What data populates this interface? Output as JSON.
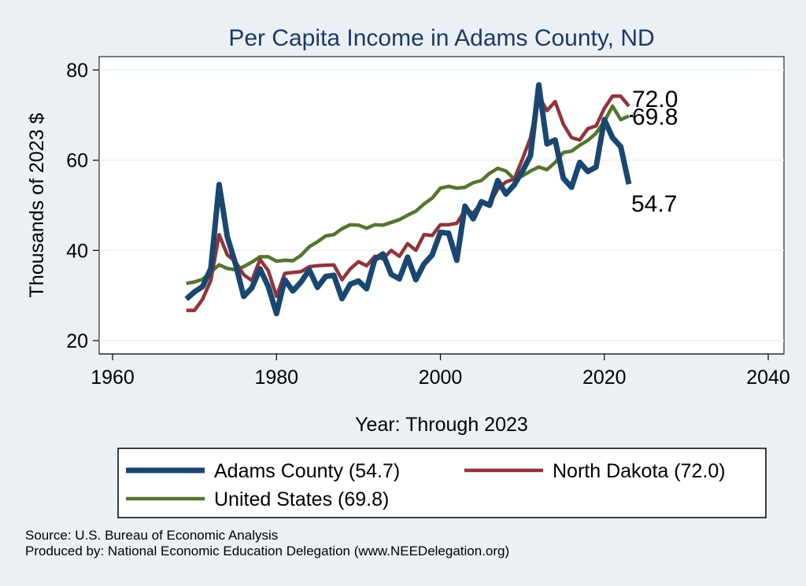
{
  "chart_data": {
    "type": "line",
    "title": "Per Capita Income in Adams County, ND",
    "xlabel": "Year: Through 2023",
    "ylabel": "Thousands of 2023 $",
    "xlim": [
      1960,
      2040
    ],
    "ylim": [
      20,
      80
    ],
    "xticks": [
      1960,
      1980,
      2000,
      2020,
      2040
    ],
    "yticks": [
      20,
      40,
      60,
      80
    ],
    "grid": true,
    "legend_position": "bottom",
    "x": [
      1969,
      1970,
      1971,
      1972,
      1973,
      1974,
      1975,
      1976,
      1977,
      1978,
      1979,
      1980,
      1981,
      1982,
      1983,
      1984,
      1985,
      1986,
      1987,
      1988,
      1989,
      1990,
      1991,
      1992,
      1993,
      1994,
      1995,
      1996,
      1997,
      1998,
      1999,
      2000,
      2001,
      2002,
      2003,
      2004,
      2005,
      2006,
      2007,
      2008,
      2009,
      2010,
      2011,
      2012,
      2013,
      2014,
      2015,
      2016,
      2017,
      2018,
      2019,
      2020,
      2021,
      2022,
      2023
    ],
    "series": [
      {
        "name": "Adams County",
        "legend_label": "Adams County (54.7)",
        "end_label": "54.7",
        "color": "#1a476f",
        "values": [
          29.2,
          30.8,
          32.0,
          36.0,
          54.6,
          43.0,
          37.0,
          29.8,
          31.7,
          35.9,
          32.0,
          26.0,
          33.5,
          31.0,
          33.0,
          35.7,
          31.8,
          34.2,
          34.5,
          29.3,
          32.5,
          33.2,
          31.5,
          38.0,
          39.2,
          34.7,
          33.7,
          38.5,
          33.5,
          37.0,
          39.0,
          44.0,
          43.8,
          37.8,
          49.8,
          47.0,
          50.8,
          50.0,
          55.5,
          52.5,
          54.5,
          57.5,
          61.0,
          76.7,
          63.6,
          64.5,
          56.0,
          54.0,
          59.5,
          57.5,
          58.5,
          69.0,
          65.0,
          63.0,
          54.7
        ]
      },
      {
        "name": "North Dakota",
        "legend_label": "North Dakota (72.0)",
        "end_label": "72.0",
        "color": "#90353b",
        "values": [
          26.7,
          26.7,
          29.2,
          33.4,
          43.5,
          39.0,
          37.5,
          34.6,
          33.3,
          38.0,
          35.5,
          29.8,
          34.9,
          35.1,
          35.3,
          36.4,
          36.6,
          36.7,
          36.8,
          33.5,
          35.9,
          37.5,
          36.6,
          38.7,
          38.1,
          40.0,
          38.7,
          41.5,
          40.0,
          43.5,
          43.3,
          45.7,
          45.7,
          46.0,
          48.9,
          48.3,
          50.5,
          50.4,
          53.6,
          55.2,
          55.8,
          60.2,
          65.0,
          74.2,
          71.0,
          73.0,
          68.0,
          65.0,
          64.5,
          67.0,
          67.6,
          71.5,
          74.2,
          74.2,
          72.0
        ]
      },
      {
        "name": "United States",
        "legend_label": "United States (69.8)",
        "end_label": "69.8",
        "color": "#55752f",
        "values": [
          32.7,
          33.0,
          33.6,
          35.2,
          36.8,
          36.0,
          35.7,
          36.4,
          37.4,
          38.6,
          38.6,
          37.6,
          37.8,
          37.7,
          38.9,
          40.8,
          41.9,
          43.2,
          43.5,
          44.8,
          45.7,
          45.6,
          44.9,
          45.7,
          45.6,
          46.2,
          46.8,
          47.8,
          48.7,
          50.3,
          51.6,
          53.8,
          54.2,
          53.8,
          54.0,
          55.0,
          55.5,
          57.1,
          58.2,
          57.6,
          55.8,
          56.5,
          57.6,
          58.5,
          57.9,
          59.5,
          61.7,
          62.0,
          63.3,
          64.4,
          66.0,
          68.6,
          72.0,
          69.0,
          69.8
        ]
      }
    ]
  },
  "notes": {
    "source": "Source: U.S. Bureau of Economic Analysis",
    "produced_by": "Produced by: National Economic Education Delegation (www.NEEDelegation.org)"
  }
}
